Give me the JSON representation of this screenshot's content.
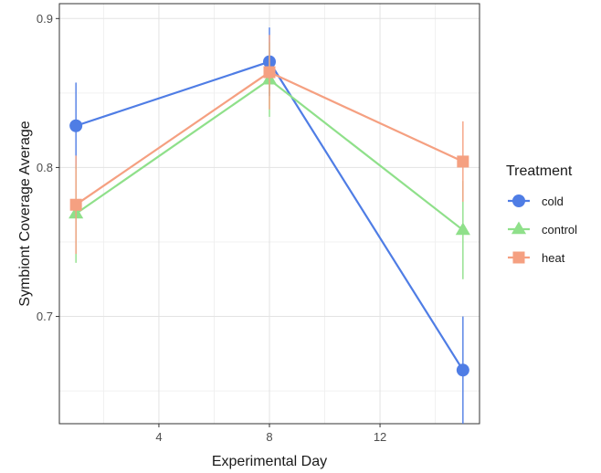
{
  "chart_data": {
    "type": "line",
    "xlabel": "Experimental Day",
    "ylabel": "Symbiont Coverage Average",
    "xlim": [
      0.4,
      15.6
    ],
    "ylim": [
      0.628,
      0.91
    ],
    "x_ticks": [
      4,
      8,
      12
    ],
    "y_ticks": [
      0.7,
      0.8,
      0.9
    ],
    "x_tick_labels": [
      "4",
      "8",
      "12"
    ],
    "y_tick_labels": [
      "0.7",
      "0.8",
      "0.9"
    ],
    "grid": true,
    "legend": {
      "title": "Treatment",
      "position": "right"
    },
    "series": [
      {
        "name": "cold",
        "color": "#4f7de5",
        "marker": "circle",
        "x": [
          1,
          8,
          15
        ],
        "y": [
          0.828,
          0.871,
          0.664
        ],
        "ymin": [
          0.799,
          0.848,
          0.628
        ],
        "ymax": [
          0.857,
          0.894,
          0.7
        ]
      },
      {
        "name": "control",
        "color": "#8fe08a",
        "marker": "triangle",
        "x": [
          1,
          8,
          15
        ],
        "y": [
          0.769,
          0.859,
          0.758
        ],
        "ymin": [
          0.736,
          0.834,
          0.725
        ],
        "ymax": [
          0.802,
          0.884,
          0.791
        ]
      },
      {
        "name": "heat",
        "color": "#f5a081",
        "marker": "square",
        "x": [
          1,
          8,
          15
        ],
        "y": [
          0.775,
          0.864,
          0.804
        ],
        "ymin": [
          0.742,
          0.839,
          0.777
        ],
        "ymax": [
          0.808,
          0.889,
          0.831
        ]
      }
    ]
  }
}
